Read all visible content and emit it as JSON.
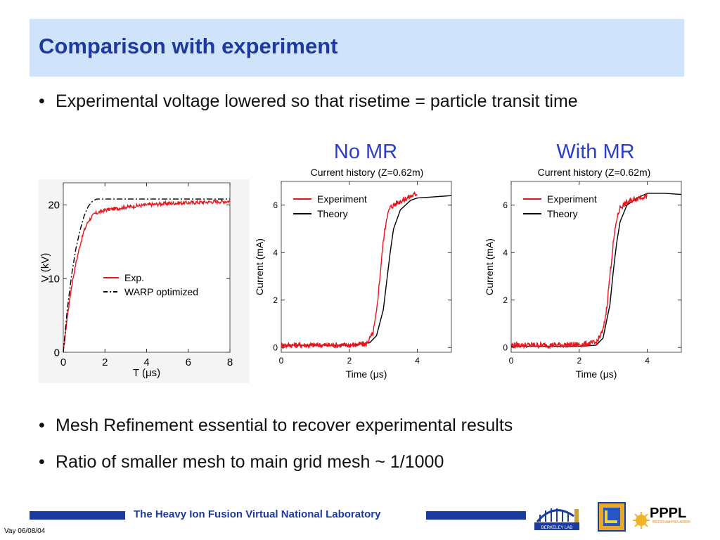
{
  "slide": {
    "title": "Comparison with experiment",
    "bullets": [
      "Experimental voltage lowered so that risetime = particle transit time",
      "Mesh Refinement essential to recover experimental results",
      "Ratio of smaller mesh to main grid mesh ~ 1/1000"
    ],
    "panel_titles": [
      "No MR",
      "With MR"
    ],
    "footer": {
      "lab": "The Heavy Ion Fusion Virtual National Laboratory",
      "date": "Vay 06/08/04",
      "logos": [
        {
          "name": "berkeley-lab-logo",
          "text": "BERKELEY LAB"
        },
        {
          "name": "llnl-logo",
          "text": ""
        },
        {
          "name": "pppl-logo",
          "text": "PPPL",
          "subtext": "PRINCETON PLASMA PHYSICS LABORATORY"
        }
      ],
      "bar_color": "#1b3c9e"
    },
    "colors": {
      "title": "#1e3a9c",
      "title_bg": "#cfe3fb",
      "panel_title": "#2b3ec7",
      "exp": "#e8141b",
      "theory": "#000000"
    }
  },
  "chart_data": [
    {
      "type": "line",
      "title": "",
      "xlabel": "T (μs)",
      "ylabel": "V (kV)",
      "xlim": [
        0,
        8
      ],
      "ylim": [
        0,
        23
      ],
      "xticks": [
        0,
        2,
        4,
        6,
        8
      ],
      "yticks": [
        0,
        10,
        20
      ],
      "legend": "center-right",
      "series": [
        {
          "name": "Exp.",
          "style": "solid",
          "color": "#e8141b",
          "x": [
            0,
            0.2,
            0.4,
            0.6,
            0.8,
            1.0,
            1.2,
            1.5,
            2.0,
            3.0,
            4.0,
            5.0,
            6.0,
            7.0,
            8.0
          ],
          "y": [
            0,
            5,
            9,
            12,
            14.5,
            16.5,
            17.8,
            18.8,
            19.3,
            19.7,
            20.0,
            20.2,
            20.3,
            20.4,
            20.5
          ]
        },
        {
          "name": "WARP optimized",
          "style": "dashdot",
          "color": "#000000",
          "x": [
            0,
            0.2,
            0.4,
            0.6,
            0.8,
            1.0,
            1.2,
            1.4,
            1.6,
            2.0,
            8.0
          ],
          "y": [
            0,
            6,
            10.5,
            14,
            16.5,
            18.5,
            19.8,
            20.5,
            20.8,
            20.8,
            20.8
          ]
        }
      ]
    },
    {
      "type": "line",
      "title": "Current history (Z=0.62m)",
      "xlabel": "Time (μs)",
      "ylabel": "Current (mA)",
      "xlim": [
        0,
        5
      ],
      "ylim": [
        -0.2,
        7
      ],
      "xticks": [
        0,
        2,
        4
      ],
      "yticks": [
        0,
        2,
        4,
        6
      ],
      "legend": "top-left",
      "series": [
        {
          "name": "Experiment",
          "style": "solid",
          "color": "#e8141b",
          "x": [
            0,
            1.0,
            2.0,
            2.5,
            2.7,
            2.8,
            2.9,
            3.0,
            3.1,
            3.2,
            3.4,
            3.7,
            4.0
          ],
          "y": [
            0.1,
            0.1,
            0.1,
            0.15,
            0.6,
            1.5,
            3.0,
            4.5,
            5.5,
            5.9,
            6.1,
            6.3,
            6.5
          ]
        },
        {
          "name": "Theory",
          "style": "solid",
          "color": "#000000",
          "x": [
            0,
            2.0,
            2.6,
            2.8,
            3.0,
            3.1,
            3.2,
            3.3,
            3.5,
            3.8,
            4.0,
            4.5,
            5.0
          ],
          "y": [
            0.1,
            0.1,
            0.2,
            0.5,
            1.6,
            2.8,
            4.0,
            5.0,
            5.8,
            6.2,
            6.3,
            6.35,
            6.4
          ]
        }
      ]
    },
    {
      "type": "line",
      "title": "Current history (Z=0.62m)",
      "xlabel": "Time (μs)",
      "ylabel": "Current (mA)",
      "xlim": [
        0,
        5
      ],
      "ylim": [
        -0.2,
        7
      ],
      "xticks": [
        0,
        2,
        4
      ],
      "yticks": [
        0,
        2,
        4,
        6
      ],
      "legend": "top-left",
      "series": [
        {
          "name": "Experiment",
          "style": "solid",
          "color": "#e8141b",
          "x": [
            0,
            1.0,
            2.0,
            2.5,
            2.7,
            2.8,
            2.9,
            3.0,
            3.1,
            3.2,
            3.4,
            3.7,
            4.0
          ],
          "y": [
            0.1,
            0.1,
            0.12,
            0.2,
            0.7,
            1.6,
            3.0,
            4.4,
            5.4,
            5.9,
            6.1,
            6.3,
            6.4
          ]
        },
        {
          "name": "Theory",
          "style": "solid",
          "color": "#000000",
          "x": [
            0,
            2.0,
            2.5,
            2.7,
            2.9,
            3.0,
            3.1,
            3.2,
            3.4,
            3.7,
            4.0,
            4.5,
            5.0
          ],
          "y": [
            0.05,
            0.05,
            0.1,
            0.4,
            1.8,
            3.2,
            4.4,
            5.3,
            6.0,
            6.3,
            6.5,
            6.5,
            6.45
          ]
        }
      ]
    }
  ]
}
